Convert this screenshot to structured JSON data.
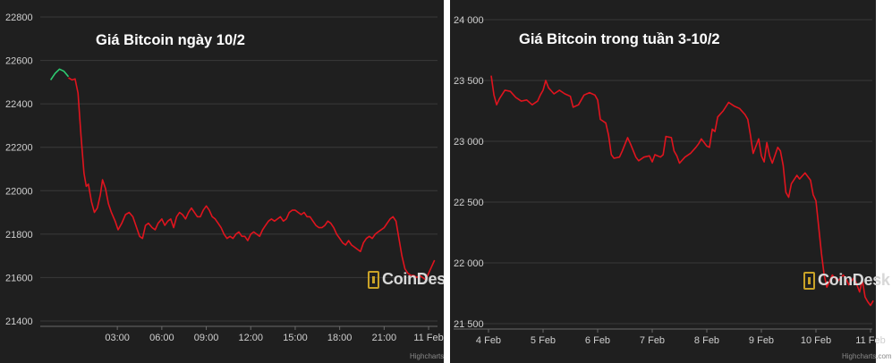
{
  "chart_data": [
    {
      "type": "line",
      "title": "Giá Bitcoin ngày 10/2",
      "ylim": [
        21400,
        22800
      ],
      "yticks": [
        "21400",
        "21600",
        "21800",
        "22000",
        "22200",
        "22400",
        "22600",
        "22800"
      ],
      "xticks": [
        "03:00",
        "06:00",
        "09:00",
        "12:00",
        "15:00",
        "18:00",
        "21:00",
        "11 Feb"
      ],
      "xlim": [
        -2.2,
        24.6
      ],
      "gridlines": true,
      "colors": {
        "up": "#2ecc71",
        "down": "#e0141e",
        "grid": "#3a3a3a",
        "axis_text": "#cfcfcf"
      },
      "series": [
        {
          "color": "up",
          "points": [
            [
              -1.5,
              22510
            ],
            [
              -1.2,
              22540
            ],
            [
              -0.9,
              22560
            ],
            [
              -0.6,
              22550
            ],
            [
              -0.3,
              22525
            ]
          ]
        },
        {
          "color": "down",
          "points": [
            [
              -0.3,
              22520
            ],
            [
              -0.05,
              22510
            ],
            [
              0.15,
              22515
            ],
            [
              0.35,
              22450
            ],
            [
              0.55,
              22250
            ],
            [
              0.75,
              22080
            ],
            [
              0.9,
              22020
            ],
            [
              1.05,
              22030
            ],
            [
              1.25,
              21950
            ],
            [
              1.45,
              21900
            ],
            [
              1.65,
              21920
            ],
            [
              1.85,
              21980
            ],
            [
              2.0,
              22050
            ],
            [
              2.2,
              22010
            ],
            [
              2.4,
              21940
            ],
            [
              2.6,
              21900
            ],
            [
              2.85,
              21860
            ],
            [
              3.05,
              21820
            ],
            [
              3.3,
              21850
            ],
            [
              3.55,
              21890
            ],
            [
              3.8,
              21900
            ],
            [
              4.05,
              21880
            ],
            [
              4.3,
              21830
            ],
            [
              4.5,
              21790
            ],
            [
              4.7,
              21780
            ],
            [
              4.9,
              21840
            ],
            [
              5.1,
              21850
            ],
            [
              5.35,
              21830
            ],
            [
              5.55,
              21820
            ],
            [
              5.75,
              21850
            ],
            [
              6.0,
              21870
            ],
            [
              6.2,
              21840
            ],
            [
              6.4,
              21860
            ],
            [
              6.6,
              21870
            ],
            [
              6.8,
              21830
            ],
            [
              7.0,
              21880
            ],
            [
              7.2,
              21900
            ],
            [
              7.4,
              21890
            ],
            [
              7.6,
              21870
            ],
            [
              7.8,
              21900
            ],
            [
              8.0,
              21920
            ],
            [
              8.2,
              21900
            ],
            [
              8.4,
              21880
            ],
            [
              8.6,
              21880
            ],
            [
              8.8,
              21910
            ],
            [
              9.0,
              21930
            ],
            [
              9.2,
              21910
            ],
            [
              9.4,
              21880
            ],
            [
              9.6,
              21870
            ],
            [
              9.8,
              21850
            ],
            [
              10.0,
              21830
            ],
            [
              10.2,
              21800
            ],
            [
              10.4,
              21780
            ],
            [
              10.6,
              21790
            ],
            [
              10.8,
              21780
            ],
            [
              11.0,
              21800
            ],
            [
              11.2,
              21810
            ],
            [
              11.4,
              21790
            ],
            [
              11.6,
              21790
            ],
            [
              11.8,
              21770
            ],
            [
              12.0,
              21800
            ],
            [
              12.2,
              21810
            ],
            [
              12.4,
              21800
            ],
            [
              12.6,
              21790
            ],
            [
              12.8,
              21820
            ],
            [
              13.0,
              21840
            ],
            [
              13.2,
              21860
            ],
            [
              13.4,
              21870
            ],
            [
              13.6,
              21860
            ],
            [
              13.8,
              21870
            ],
            [
              14.0,
              21880
            ],
            [
              14.2,
              21860
            ],
            [
              14.4,
              21870
            ],
            [
              14.6,
              21900
            ],
            [
              14.8,
              21910
            ],
            [
              15.0,
              21910
            ],
            [
              15.2,
              21900
            ],
            [
              15.4,
              21890
            ],
            [
              15.6,
              21900
            ],
            [
              15.8,
              21880
            ],
            [
              16.0,
              21880
            ],
            [
              16.2,
              21860
            ],
            [
              16.4,
              21840
            ],
            [
              16.6,
              21830
            ],
            [
              16.8,
              21830
            ],
            [
              17.0,
              21840
            ],
            [
              17.2,
              21860
            ],
            [
              17.4,
              21850
            ],
            [
              17.6,
              21830
            ],
            [
              17.8,
              21800
            ],
            [
              18.0,
              21780
            ],
            [
              18.2,
              21760
            ],
            [
              18.4,
              21750
            ],
            [
              18.6,
              21770
            ],
            [
              18.8,
              21750
            ],
            [
              19.0,
              21740
            ],
            [
              19.2,
              21730
            ],
            [
              19.4,
              21720
            ],
            [
              19.6,
              21760
            ],
            [
              19.8,
              21780
            ],
            [
              20.0,
              21790
            ],
            [
              20.2,
              21780
            ],
            [
              20.4,
              21800
            ],
            [
              20.6,
              21810
            ],
            [
              20.8,
              21820
            ],
            [
              21.0,
              21830
            ],
            [
              21.2,
              21850
            ],
            [
              21.4,
              21870
            ],
            [
              21.6,
              21880
            ],
            [
              21.8,
              21860
            ],
            [
              22.0,
              21780
            ],
            [
              22.2,
              21700
            ],
            [
              22.4,
              21640
            ],
            [
              22.6,
              21620
            ],
            [
              22.8,
              21610
            ],
            [
              23.0,
              21610
            ],
            [
              23.2,
              21600
            ],
            [
              23.4,
              21610
            ],
            [
              23.6,
              21600
            ],
            [
              23.8,
              21590
            ],
            [
              24.0,
              21620
            ],
            [
              24.2,
              21650
            ],
            [
              24.4,
              21680
            ]
          ]
        }
      ]
    },
    {
      "type": "line",
      "title": "Giá Bitcoin trong tuần 3-10/2",
      "ylim": [
        21500,
        24000
      ],
      "yticks": [
        "21 500",
        "22 000",
        "22 500",
        "23 000",
        "23 500",
        "24 000"
      ],
      "xticks": [
        "4 Feb",
        "5 Feb",
        "6 Feb",
        "7 Feb",
        "8 Feb",
        "9 Feb",
        "10 Feb",
        "11 Feb"
      ],
      "xlim": [
        0,
        7
      ],
      "gridlines": true,
      "colors": {
        "line": "#e0141e",
        "grid": "#3a3a3a",
        "axis_text": "#cfcfcf"
      },
      "points": [
        [
          0.05,
          23540
        ],
        [
          0.1,
          23380
        ],
        [
          0.15,
          23300
        ],
        [
          0.2,
          23350
        ],
        [
          0.3,
          23420
        ],
        [
          0.4,
          23410
        ],
        [
          0.5,
          23360
        ],
        [
          0.6,
          23330
        ],
        [
          0.7,
          23340
        ],
        [
          0.8,
          23300
        ],
        [
          0.9,
          23330
        ],
        [
          0.95,
          23380
        ],
        [
          1.0,
          23420
        ],
        [
          1.05,
          23500
        ],
        [
          1.1,
          23440
        ],
        [
          1.2,
          23390
        ],
        [
          1.3,
          23420
        ],
        [
          1.4,
          23390
        ],
        [
          1.5,
          23370
        ],
        [
          1.55,
          23280
        ],
        [
          1.65,
          23300
        ],
        [
          1.75,
          23380
        ],
        [
          1.85,
          23400
        ],
        [
          1.95,
          23380
        ],
        [
          2.0,
          23340
        ],
        [
          2.05,
          23180
        ],
        [
          2.15,
          23150
        ],
        [
          2.2,
          23050
        ],
        [
          2.25,
          22890
        ],
        [
          2.3,
          22860
        ],
        [
          2.4,
          22870
        ],
        [
          2.45,
          22920
        ],
        [
          2.55,
          23030
        ],
        [
          2.6,
          22980
        ],
        [
          2.7,
          22870
        ],
        [
          2.75,
          22840
        ],
        [
          2.85,
          22870
        ],
        [
          2.95,
          22880
        ],
        [
          3.0,
          22830
        ],
        [
          3.05,
          22890
        ],
        [
          3.15,
          22870
        ],
        [
          3.2,
          22890
        ],
        [
          3.25,
          23040
        ],
        [
          3.35,
          23030
        ],
        [
          3.4,
          22920
        ],
        [
          3.45,
          22880
        ],
        [
          3.5,
          22820
        ],
        [
          3.6,
          22870
        ],
        [
          3.7,
          22900
        ],
        [
          3.8,
          22950
        ],
        [
          3.85,
          22980
        ],
        [
          3.9,
          23020
        ],
        [
          4.0,
          22960
        ],
        [
          4.05,
          22950
        ],
        [
          4.1,
          23100
        ],
        [
          4.15,
          23080
        ],
        [
          4.2,
          23200
        ],
        [
          4.3,
          23250
        ],
        [
          4.4,
          23320
        ],
        [
          4.5,
          23290
        ],
        [
          4.6,
          23270
        ],
        [
          4.7,
          23220
        ],
        [
          4.75,
          23180
        ],
        [
          4.8,
          23050
        ],
        [
          4.85,
          22900
        ],
        [
          4.95,
          23020
        ],
        [
          5.0,
          22880
        ],
        [
          5.05,
          22830
        ],
        [
          5.1,
          22990
        ],
        [
          5.15,
          22880
        ],
        [
          5.2,
          22820
        ],
        [
          5.3,
          22950
        ],
        [
          5.35,
          22920
        ],
        [
          5.4,
          22800
        ],
        [
          5.45,
          22580
        ],
        [
          5.5,
          22540
        ],
        [
          5.55,
          22650
        ],
        [
          5.65,
          22720
        ],
        [
          5.7,
          22690
        ],
        [
          5.8,
          22740
        ],
        [
          5.9,
          22680
        ],
        [
          5.95,
          22560
        ],
        [
          6.0,
          22510
        ],
        [
          6.05,
          22300
        ],
        [
          6.1,
          22080
        ],
        [
          6.15,
          21900
        ],
        [
          6.2,
          21800
        ],
        [
          6.25,
          21850
        ],
        [
          6.3,
          21900
        ],
        [
          6.4,
          21850
        ],
        [
          6.5,
          21900
        ],
        [
          6.55,
          21870
        ],
        [
          6.6,
          21820
        ],
        [
          6.7,
          21880
        ],
        [
          6.8,
          21760
        ],
        [
          6.85,
          21860
        ],
        [
          6.9,
          21720
        ],
        [
          6.95,
          21680
        ],
        [
          7.0,
          21650
        ],
        [
          7.05,
          21690
        ]
      ]
    }
  ],
  "watermark": {
    "logo_text": "CoinDesk",
    "credit": "Highcharts.com"
  }
}
